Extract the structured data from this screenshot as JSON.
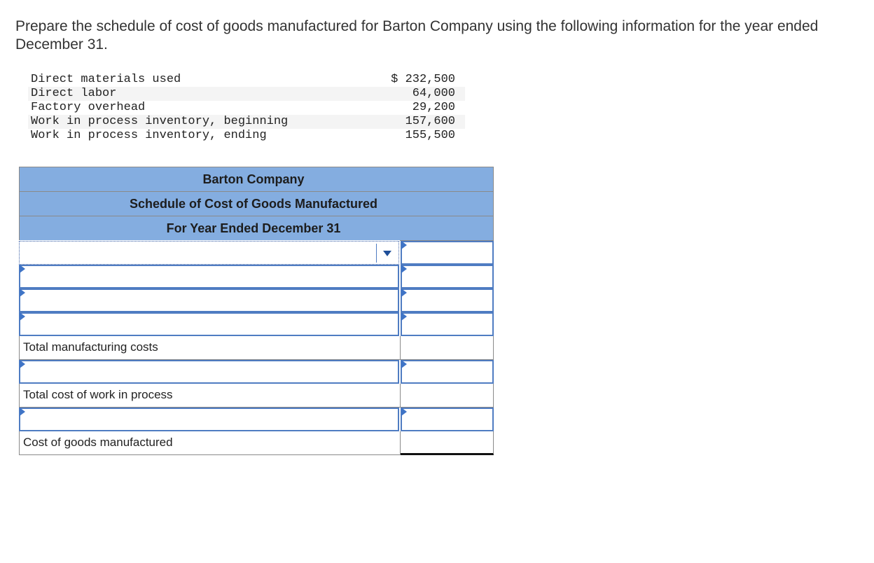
{
  "prompt": "Prepare the schedule of cost of goods manufactured for Barton Company using the following information for the year ended December 31.",
  "given_data": [
    {
      "label": "Direct materials used",
      "amount": "$ 232,500"
    },
    {
      "label": "Direct labor",
      "amount": "64,000"
    },
    {
      "label": "Factory overhead",
      "amount": "29,200"
    },
    {
      "label": "Work in process inventory, beginning",
      "amount": "157,600"
    },
    {
      "label": "Work in process inventory, ending",
      "amount": "155,500"
    }
  ],
  "schedule": {
    "company": "Barton Company",
    "title": "Schedule of Cost of Goods Manufactured",
    "period": "For Year Ended December 31",
    "labels": {
      "total_manufacturing_costs": "Total manufacturing costs",
      "total_cost_wip": "Total cost of work in process",
      "cogm": "Cost of goods manufactured"
    },
    "colors": {
      "header_bg": "#84ade0",
      "input_border": "#4f7cc2",
      "marker": "#3f74c6"
    }
  }
}
